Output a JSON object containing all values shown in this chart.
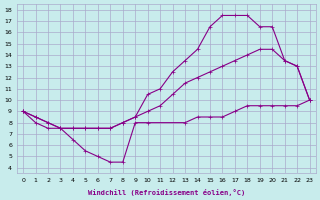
{
  "xlabel": "Windchill (Refroidissement éolien,°C)",
  "background_color": "#c8ecec",
  "grid_color": "#aaaacc",
  "line_color": "#880088",
  "xlim": [
    -0.5,
    23.5
  ],
  "ylim": [
    3.5,
    18.5
  ],
  "xticks": [
    0,
    1,
    2,
    3,
    4,
    5,
    6,
    7,
    8,
    9,
    10,
    11,
    12,
    13,
    14,
    15,
    16,
    17,
    18,
    19,
    20,
    21,
    22,
    23
  ],
  "yticks": [
    4,
    5,
    6,
    7,
    8,
    9,
    10,
    11,
    12,
    13,
    14,
    15,
    16,
    17,
    18
  ],
  "curve1_x": [
    0,
    1,
    2,
    3,
    4,
    5,
    6,
    7,
    8,
    9,
    10,
    13,
    14,
    15,
    16,
    17,
    18,
    19,
    20,
    21,
    22,
    23
  ],
  "curve1_y": [
    9,
    8,
    7.5,
    7.5,
    6.5,
    5.5,
    5.0,
    4.5,
    4.5,
    8.0,
    8.0,
    8.0,
    8.5,
    8.5,
    8.5,
    9.0,
    9.5,
    9.5,
    9.5,
    9.5,
    9.5,
    10.0
  ],
  "curve2_x": [
    0,
    1,
    2,
    3,
    4,
    5,
    6,
    7,
    8,
    9,
    10,
    11,
    12,
    13,
    14,
    15,
    16,
    17,
    18,
    19,
    20,
    21,
    22,
    23
  ],
  "curve2_y": [
    9,
    8.5,
    8.0,
    7.5,
    7.5,
    7.5,
    7.5,
    7.5,
    8.0,
    8.5,
    10.5,
    11.0,
    12.5,
    13.5,
    14.5,
    16.5,
    17.5,
    17.5,
    17.5,
    16.5,
    16.5,
    13.5,
    13.0,
    10.0
  ],
  "curve3_x": [
    0,
    1,
    2,
    3,
    4,
    5,
    6,
    7,
    8,
    9,
    10,
    11,
    12,
    13,
    14,
    15,
    16,
    17,
    18,
    19,
    20,
    21,
    22,
    23
  ],
  "curve3_y": [
    9,
    8.5,
    8.0,
    7.5,
    7.5,
    7.5,
    7.5,
    7.5,
    8.0,
    8.5,
    9.0,
    9.5,
    10.5,
    11.5,
    12.0,
    12.5,
    13.0,
    13.5,
    14.0,
    14.5,
    14.5,
    13.5,
    13.0,
    10.0
  ]
}
